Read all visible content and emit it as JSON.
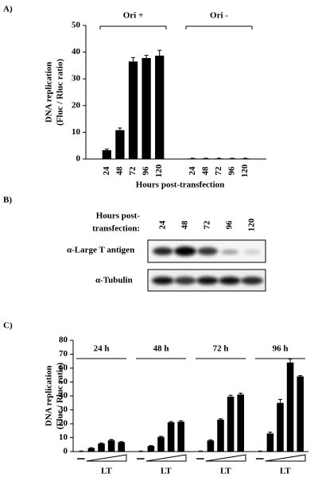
{
  "chart_data": [
    {
      "type": "bar",
      "label": "A)",
      "ylabel": [
        "DNA replication",
        "(Fluc / Rluc ratio)"
      ],
      "xlabel": "Hours post-transfection",
      "groups": [
        {
          "name": "Ori +"
        },
        {
          "name": "Ori -"
        }
      ],
      "categories": [
        "24",
        "48",
        "72",
        "96",
        "120",
        "24",
        "48",
        "72",
        "96",
        "120"
      ],
      "values": [
        3.3,
        10.8,
        36.5,
        37.8,
        38.7,
        0.2,
        0.2,
        0.2,
        0.2,
        0.2
      ],
      "errors": [
        0.4,
        0.8,
        1.5,
        1.0,
        2.0,
        0.1,
        0.1,
        0.1,
        0.1,
        0.1
      ],
      "color": "#000000",
      "ylim": [
        0,
        50
      ],
      "yticks": [
        0,
        10,
        20,
        30,
        40,
        50
      ]
    },
    {
      "type": "bar",
      "label": "C)",
      "ylabel": [
        "DNA replication",
        "(Fluc / Rluc ratio)"
      ],
      "groups": [
        {
          "name": "24 h",
          "sublabel": "LT"
        },
        {
          "name": "48 h",
          "sublabel": "LT"
        },
        {
          "name": "72 h",
          "sublabel": "LT"
        },
        {
          "name": "96 h",
          "sublabel": "LT"
        }
      ],
      "values": [
        0.3,
        2.5,
        5.8,
        8.2,
        6.8,
        0.3,
        4.0,
        10.5,
        21.0,
        21.5,
        0.3,
        8.0,
        23.0,
        39.5,
        41.0,
        0.3,
        13.0,
        35.0,
        64.0,
        54.0
      ],
      "errors": [
        0.1,
        0.3,
        0.4,
        0.5,
        0.4,
        0.1,
        0.3,
        0.5,
        0.6,
        0.7,
        0.1,
        0.5,
        0.6,
        1.0,
        1.0,
        0.1,
        1.0,
        2.5,
        2.5,
        0.6
      ],
      "color": "#000000",
      "ylim": [
        0,
        80
      ],
      "yticks": [
        0,
        10,
        20,
        30,
        40,
        50,
        60,
        70,
        80
      ]
    }
  ],
  "blot": {
    "label": "B)",
    "header": [
      "Hours post-",
      "transfection:"
    ],
    "lanes": [
      "24",
      "48",
      "72",
      "96",
      "120"
    ],
    "rows": [
      "α-Large T antigen",
      "α-Tubulin"
    ]
  }
}
